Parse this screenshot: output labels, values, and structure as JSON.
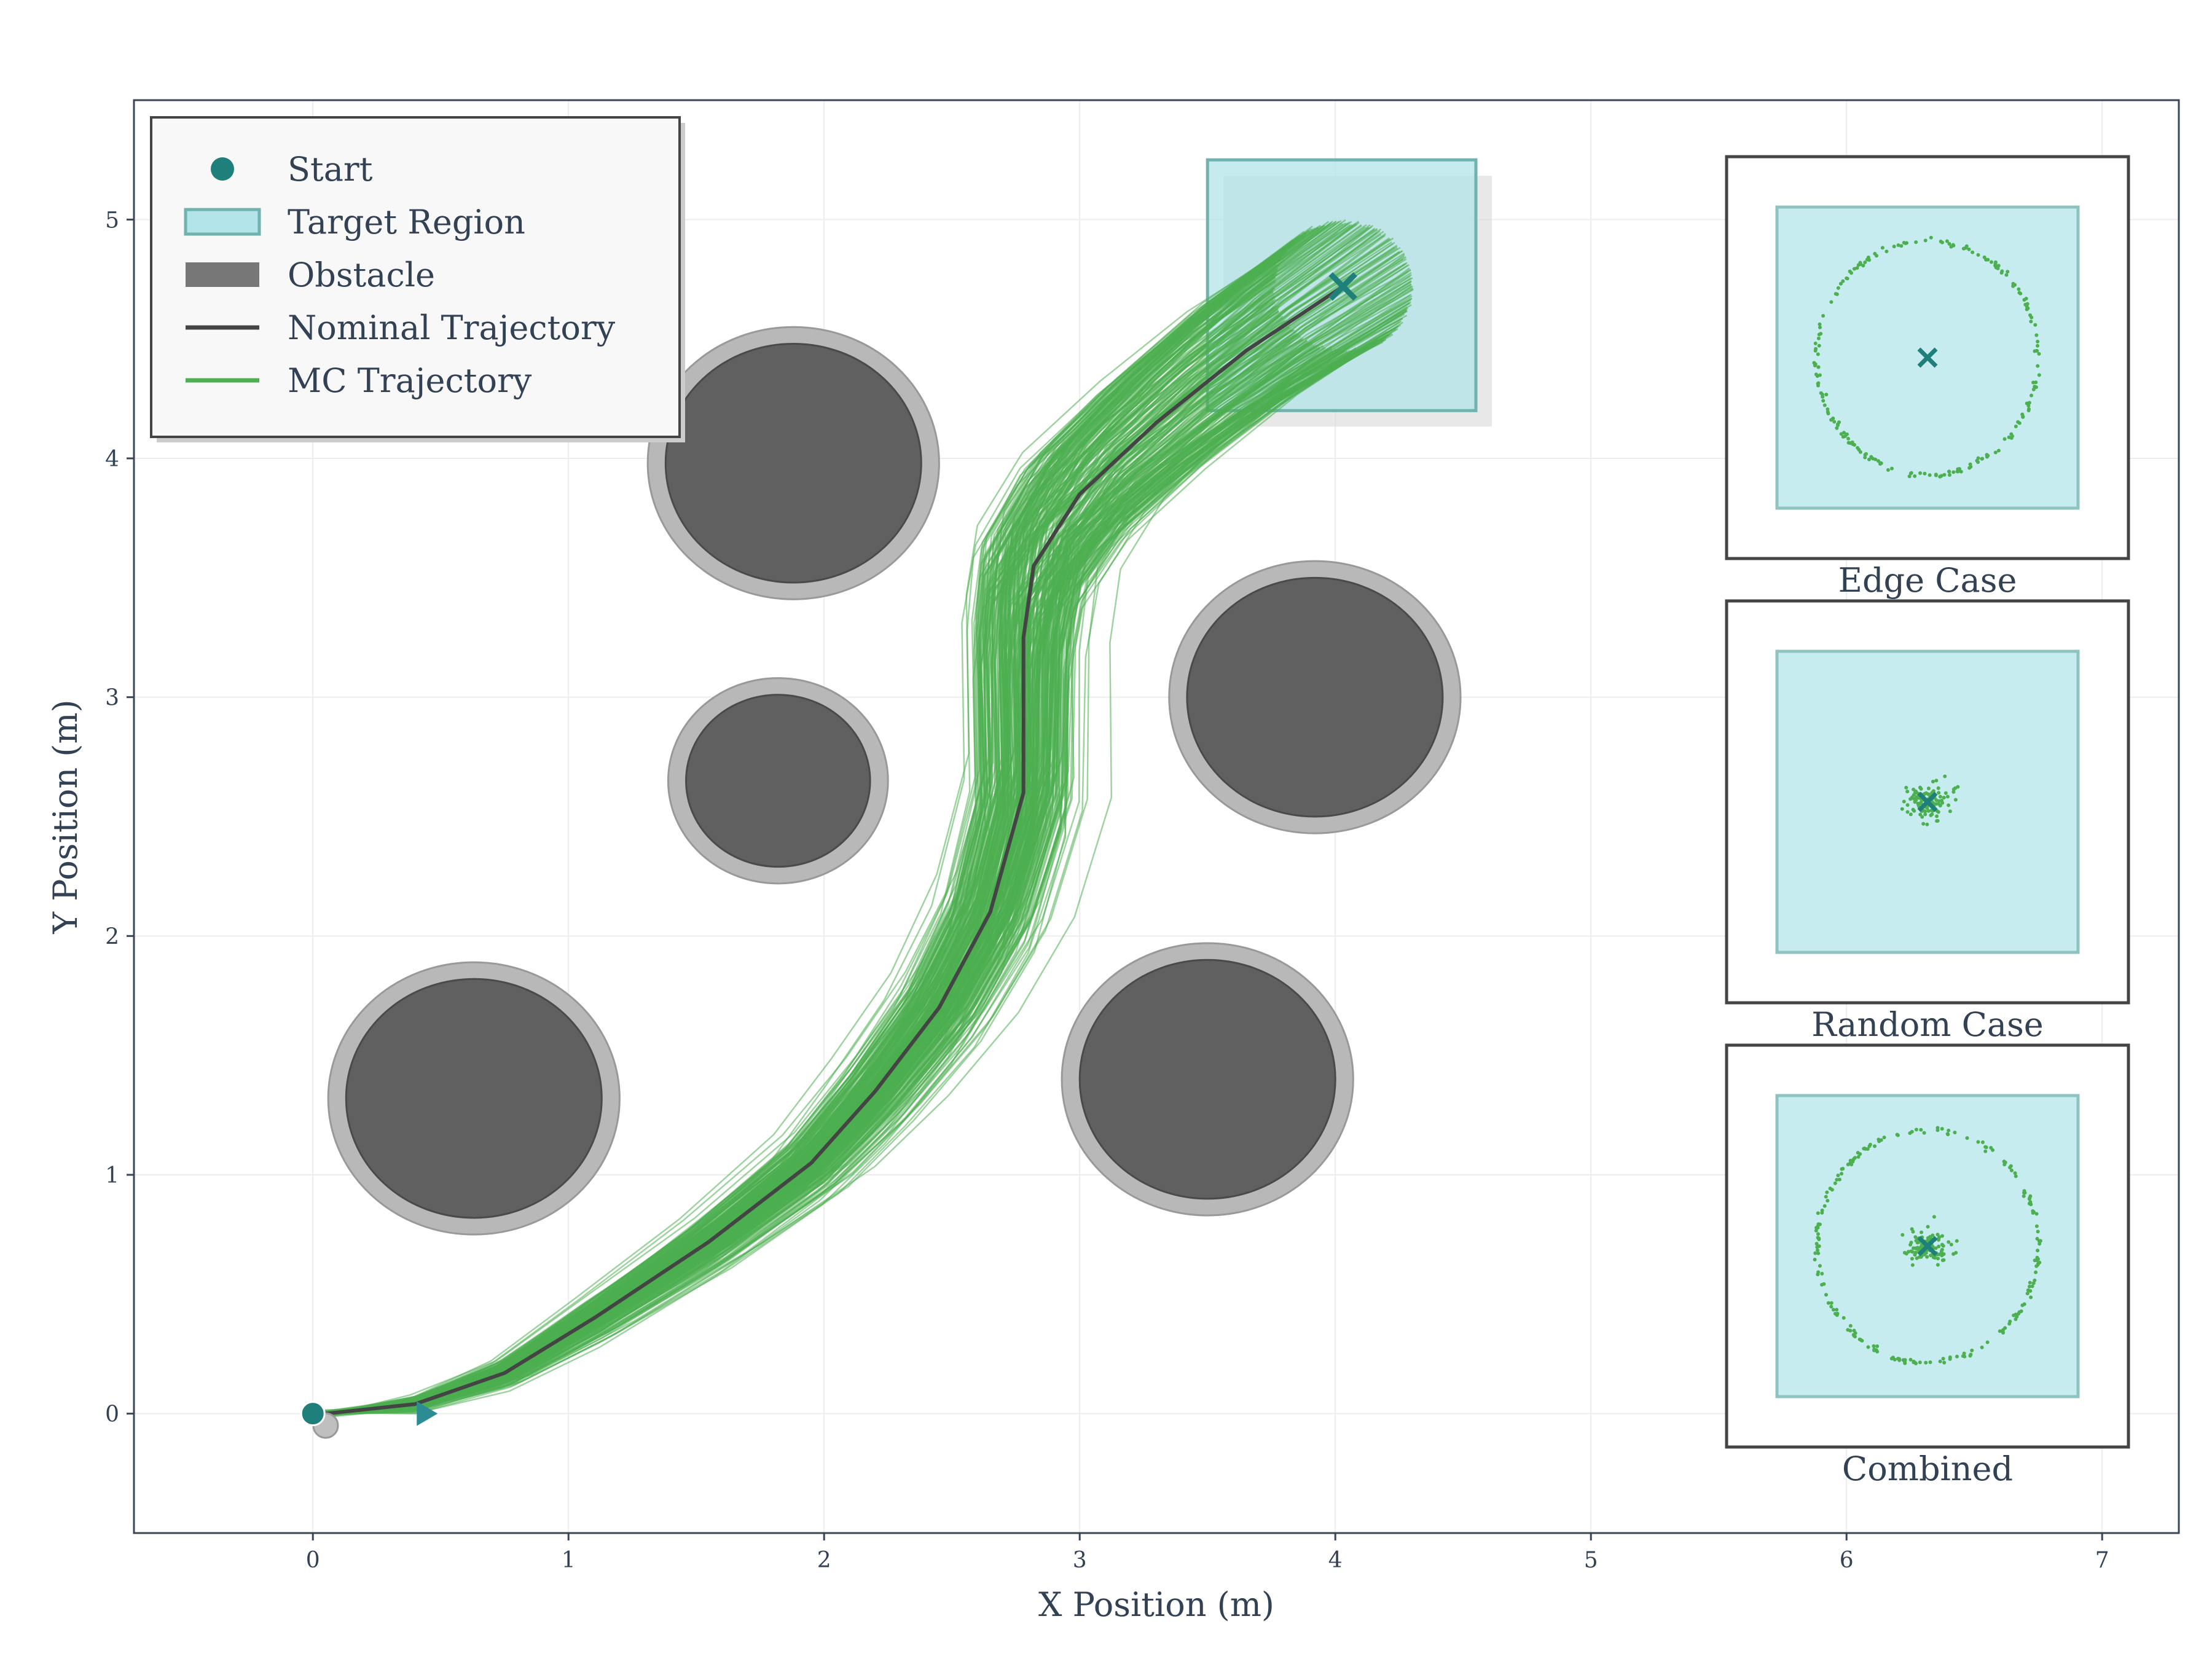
{
  "chart_data": {
    "type": "scatter",
    "xlabel": "X Position (m)",
    "ylabel": "Y Position (m)",
    "xlim": [
      -0.7,
      7.3
    ],
    "ylim": [
      -0.5,
      5.5
    ],
    "xticks": [
      "0",
      "1",
      "2",
      "3",
      "4",
      "5",
      "6",
      "7"
    ],
    "yticks": [
      "0",
      "1",
      "2",
      "3",
      "4",
      "5"
    ],
    "grid": true,
    "legend": {
      "position": "top-left",
      "entries": [
        {
          "label": "Start",
          "kind": "marker",
          "color": "#1f7f7a"
        },
        {
          "label": "Target Region",
          "kind": "patch",
          "color": "#b2e4ea"
        },
        {
          "label": "Obstacle",
          "kind": "patch",
          "color": "#777777"
        },
        {
          "label": "Nominal Trajectory",
          "kind": "line",
          "color": "#444444"
        },
        {
          "label": "MC Trajectory",
          "kind": "line",
          "color": "#4caf50"
        }
      ]
    },
    "start": [
      0,
      0
    ],
    "target": {
      "center": [
        4.03,
        4.72
      ],
      "x_range": [
        3.5,
        4.55
      ],
      "y_range": [
        4.2,
        5.25
      ]
    },
    "obstacles": [
      {
        "center": [
          0.63,
          1.32
        ],
        "radius": 0.5
      },
      {
        "center": [
          1.88,
          3.98
        ],
        "radius": 0.5
      },
      {
        "center": [
          1.82,
          2.65
        ],
        "radius": 0.36
      },
      {
        "center": [
          3.92,
          3.0
        ],
        "radius": 0.5
      },
      {
        "center": [
          3.5,
          1.4
        ],
        "radius": 0.5
      }
    ],
    "nominal_trajectory": {
      "x": [
        0.05,
        0.4,
        0.75,
        1.1,
        1.55,
        1.95,
        2.2,
        2.45,
        2.65,
        2.78,
        2.78,
        2.82,
        3.0,
        3.3,
        3.65,
        4.03
      ],
      "y": [
        0.0,
        0.04,
        0.17,
        0.4,
        0.72,
        1.05,
        1.35,
        1.7,
        2.1,
        2.6,
        3.25,
        3.55,
        3.85,
        4.15,
        4.45,
        4.72
      ]
    },
    "mc_trajectory_count": 300,
    "insets": [
      {
        "label": "Edge Case"
      },
      {
        "label": "Random Case"
      },
      {
        "label": "Combined"
      }
    ],
    "colors": {
      "start": "#1f7f7a",
      "target_fill": "#b2e4ea",
      "target_edge": "#6fb2ae",
      "obstacle_fill": "#606060",
      "obstacle_halo": "#b8b8b8",
      "nominal": "#444444",
      "mc": "#4caf50",
      "marker": "#1f7f7a"
    }
  }
}
